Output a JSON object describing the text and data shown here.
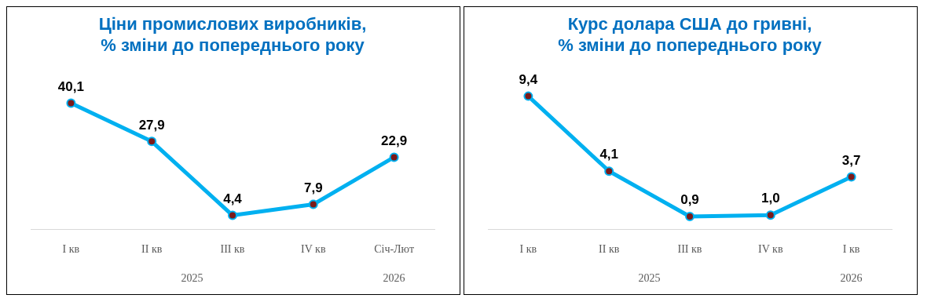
{
  "chart_data": [
    {
      "type": "line",
      "title": "Ціни промислових виробників,\n% зміни до попереднього року",
      "categories": [
        "I кв",
        "II кв",
        "III кв",
        "IV кв",
        "Січ-Лют"
      ],
      "series": [
        {
          "color": "#00b0f0",
          "values": [
            40.1,
            27.9,
            4.4,
            7.9,
            22.9
          ],
          "value_labels": [
            "40,1",
            "27,9",
            "4,4",
            "7,9",
            "22,9"
          ]
        }
      ],
      "marker": "circle",
      "legend": false,
      "grid": false,
      "annotations": [
        "2025",
        "2026"
      ]
    },
    {
      "type": "line",
      "title": "Курс долара США до гривні,\n% зміни до попереднього року",
      "categories": [
        "I кв",
        "II кв",
        "III кв",
        "IV кв",
        "I кв"
      ],
      "series": [
        {
          "color": "#00b0f0",
          "values": [
            9.4,
            4.1,
            0.9,
            1.0,
            3.7
          ],
          "value_labels": [
            "9,4",
            "4,1",
            "0,9",
            "1,0",
            "3,7"
          ]
        }
      ],
      "marker": "circle",
      "legend": false,
      "grid": false,
      "annotations": [
        "2025",
        "2026"
      ]
    }
  ]
}
